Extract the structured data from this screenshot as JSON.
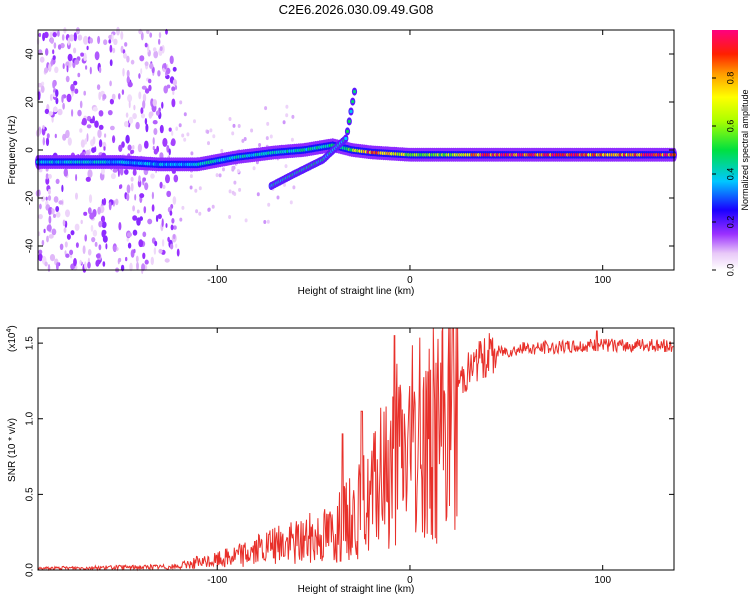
{
  "title": "C2E6.2026.030.09.49.G08",
  "chart_data": [
    {
      "type": "heatmap",
      "name": "spectrogram",
      "xlabel": "Height of straight line (km)",
      "ylabel": "Frequency (Hz)",
      "xlim": [
        -193,
        137
      ],
      "ylim": [
        -50,
        50
      ],
      "x_ticks": [
        -100,
        0,
        100
      ],
      "y_ticks": [
        -40,
        -20,
        0,
        20,
        40
      ],
      "colorbar": {
        "label": "Normalized spectral amplitude",
        "range": [
          0,
          1
        ],
        "ticks": [
          "0.0",
          "0.2",
          "0.4",
          "0.6",
          "0.8"
        ],
        "tick_values": [
          0,
          0.2,
          0.4,
          0.6,
          0.8
        ]
      },
      "ridge": [
        {
          "x": -190,
          "freq": -5,
          "amp": 0.35
        },
        {
          "x": -170,
          "freq": -5,
          "amp": 0.38
        },
        {
          "x": -150,
          "freq": -5,
          "amp": 0.35
        },
        {
          "x": -130,
          "freq": -6,
          "amp": 0.35
        },
        {
          "x": -110,
          "freq": -6,
          "amp": 0.38
        },
        {
          "x": -90,
          "freq": -3,
          "amp": 0.4
        },
        {
          "x": -70,
          "freq": -1,
          "amp": 0.4
        },
        {
          "x": -55,
          "freq": 0,
          "amp": 0.42
        },
        {
          "x": -40,
          "freq": 2,
          "amp": 0.45
        },
        {
          "x": -30,
          "freq": 0,
          "amp": 0.55
        },
        {
          "x": -20,
          "freq": -1,
          "amp": 0.9
        },
        {
          "x": 0,
          "freq": -2,
          "amp": 0.6
        },
        {
          "x": 20,
          "freq": -2,
          "amp": 0.6
        },
        {
          "x": 40,
          "freq": -2,
          "amp": 0.9
        },
        {
          "x": 80,
          "freq": -2,
          "amp": 0.9
        },
        {
          "x": 100,
          "freq": -2,
          "amp": 0.8
        },
        {
          "x": 137,
          "freq": -2,
          "amp": 0.9
        }
      ],
      "branch": [
        {
          "x": -72,
          "freq": -15
        },
        {
          "x": -60,
          "freq": -10
        },
        {
          "x": -45,
          "freq": -4
        },
        {
          "x": -33,
          "freq": 5
        },
        {
          "x": -28,
          "freq": 28
        }
      ]
    },
    {
      "type": "line",
      "name": "snr",
      "xlabel": "Height of straight line (km)",
      "ylabel": "SNR (10 * v/v)",
      "scale_label": "(x10",
      "scale_exponent": "4",
      "xlim": [
        -193,
        137
      ],
      "ylim": [
        0,
        1.6
      ],
      "x_ticks": [
        -100,
        0,
        100
      ],
      "y_ticks": [
        "0.0",
        "0.5",
        "1.0",
        "1.5"
      ],
      "y_tick_values": [
        0,
        0.5,
        1.0,
        1.5
      ],
      "color": "#e8302a",
      "envelope": [
        {
          "x": -193,
          "y": 0.01
        },
        {
          "x": -120,
          "y": 0.02
        },
        {
          "x": -100,
          "y": 0.08
        },
        {
          "x": -80,
          "y": 0.15
        },
        {
          "x": -60,
          "y": 0.22
        },
        {
          "x": -40,
          "y": 0.3
        },
        {
          "x": -20,
          "y": 0.55
        },
        {
          "x": -10,
          "y": 0.85
        },
        {
          "x": 0,
          "y": 0.95
        },
        {
          "x": 10,
          "y": 1.05
        },
        {
          "x": 20,
          "y": 1.2
        },
        {
          "x": 30,
          "y": 1.35
        },
        {
          "x": 40,
          "y": 1.45
        },
        {
          "x": 60,
          "y": 1.48
        },
        {
          "x": 100,
          "y": 1.5
        },
        {
          "x": 137,
          "y": 1.5
        }
      ],
      "spikes": [
        {
          "x": -35,
          "y": 0.9
        },
        {
          "x": -25,
          "y": 1.05
        },
        {
          "x": -8,
          "y": 1.55
        },
        {
          "x": 97,
          "y": 1.58
        }
      ]
    }
  ]
}
